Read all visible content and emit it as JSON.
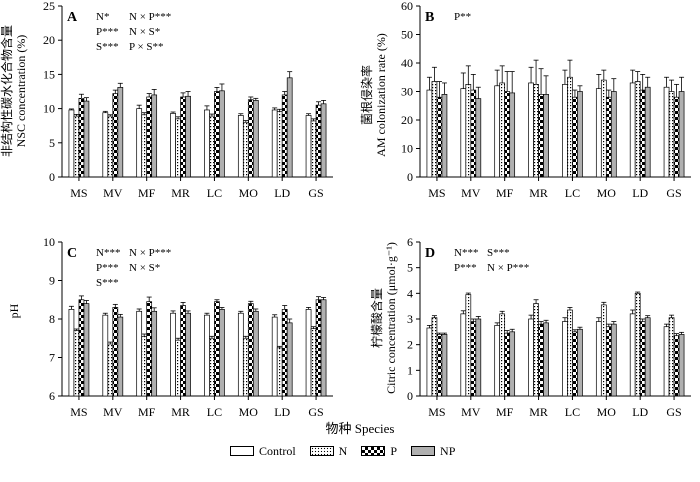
{
  "chart_data": [
    {
      "type": "bar",
      "panel_label": "A",
      "ylabel_cn": "非结构性碳水化合物含量",
      "ylabel_en": "NSC concentration (%)",
      "ylim": [
        0,
        25
      ],
      "yticks": [
        0,
        5,
        10,
        15,
        20,
        25
      ],
      "annotations": [
        [
          "N*",
          "N × P***"
        ],
        [
          "P***",
          "N × S*"
        ],
        [
          "S***",
          "P × S**"
        ]
      ],
      "categories": [
        "MS",
        "MV",
        "MF",
        "MR",
        "LC",
        "MO",
        "LD",
        "GS"
      ],
      "series": [
        {
          "name": "Control",
          "values": [
            9.8,
            9.4,
            10.0,
            9.3,
            9.8,
            9.0,
            9.8,
            9.0
          ],
          "errors": [
            0.15,
            0.2,
            0.5,
            0.2,
            0.6,
            0.25,
            0.3,
            0.25
          ]
        },
        {
          "name": "N",
          "values": [
            8.9,
            8.9,
            9.1,
            8.5,
            8.9,
            8.0,
            9.6,
            8.2
          ],
          "errors": [
            0.25,
            0.2,
            0.3,
            0.3,
            0.3,
            0.25,
            0.3,
            0.3
          ]
        },
        {
          "name": "P",
          "values": [
            11.5,
            12.2,
            11.7,
            11.7,
            12.5,
            11.3,
            12.0,
            10.5
          ],
          "errors": [
            0.6,
            0.5,
            0.5,
            0.6,
            0.6,
            0.4,
            0.5,
            0.5
          ]
        },
        {
          "name": "NP",
          "values": [
            11.1,
            13.1,
            12.0,
            11.8,
            12.6,
            11.2,
            14.5,
            10.7
          ],
          "errors": [
            0.5,
            0.6,
            0.8,
            0.7,
            1.0,
            0.3,
            0.9,
            0.5
          ]
        }
      ]
    },
    {
      "type": "bar",
      "panel_label": "B",
      "ylabel_cn": "菌根侵染率",
      "ylabel_en": "AM colonization rate (%)",
      "ylim": [
        0,
        60
      ],
      "yticks": [
        0,
        10,
        20,
        30,
        40,
        50,
        60
      ],
      "annotations": [
        [
          "P**",
          ""
        ]
      ],
      "categories": [
        "MS",
        "MV",
        "MF",
        "MR",
        "LC",
        "MO",
        "LD",
        "GS"
      ],
      "series": [
        {
          "name": "Control",
          "values": [
            30.5,
            31.0,
            32.0,
            33.0,
            32.5,
            31.0,
            33.0,
            31.5
          ],
          "errors": [
            4.5,
            5.5,
            5.5,
            5.5,
            5.0,
            5.0,
            4.5,
            3.5
          ]
        },
        {
          "name": "N",
          "values": [
            33.5,
            32.5,
            33.0,
            32.5,
            35.0,
            34.0,
            33.5,
            30.0
          ],
          "errors": [
            5.0,
            6.5,
            6.0,
            8.5,
            6.0,
            3.5,
            3.5,
            4.0
          ]
        },
        {
          "name": "P",
          "values": [
            28.0,
            30.5,
            30.0,
            29.0,
            28.0,
            28.0,
            30.5,
            28.0
          ],
          "errors": [
            5.5,
            5.5,
            7.0,
            9.0,
            2.5,
            2.5,
            5.5,
            4.5
          ]
        },
        {
          "name": "NP",
          "values": [
            29.0,
            27.5,
            29.5,
            29.0,
            30.0,
            30.0,
            31.5,
            30.0
          ],
          "errors": [
            4.0,
            4.0,
            7.5,
            6.5,
            2.0,
            4.5,
            3.5,
            5.0
          ]
        }
      ]
    },
    {
      "type": "bar",
      "panel_label": "C",
      "ylabel_cn": "",
      "ylabel_en": "pH",
      "ylim": [
        6,
        10
      ],
      "yticks": [
        6,
        7,
        8,
        9,
        10
      ],
      "annotations": [
        [
          "N***",
          "N × P***"
        ],
        [
          "P***",
          "N × S*"
        ],
        [
          "S***",
          ""
        ]
      ],
      "categories": [
        "MS",
        "MV",
        "MF",
        "MR",
        "LC",
        "MO",
        "LD",
        "GS"
      ],
      "series": [
        {
          "name": "Control",
          "values": [
            8.25,
            8.1,
            8.2,
            8.15,
            8.1,
            8.15,
            8.05,
            8.25
          ],
          "errors": [
            0.08,
            0.05,
            0.06,
            0.06,
            0.05,
            0.05,
            0.06,
            0.05
          ]
        },
        {
          "name": "N",
          "values": [
            7.7,
            7.35,
            7.55,
            7.45,
            7.5,
            7.5,
            7.25,
            7.75
          ],
          "errors": [
            0.04,
            0.05,
            0.06,
            0.05,
            0.05,
            0.05,
            0.04,
            0.05
          ]
        },
        {
          "name": "P",
          "values": [
            8.5,
            8.3,
            8.45,
            8.35,
            8.45,
            8.4,
            8.25,
            8.5
          ],
          "errors": [
            0.1,
            0.08,
            0.12,
            0.08,
            0.05,
            0.06,
            0.1,
            0.08
          ]
        },
        {
          "name": "NP",
          "values": [
            8.4,
            8.05,
            8.2,
            8.15,
            8.25,
            8.2,
            7.9,
            8.5
          ],
          "errors": [
            0.08,
            0.07,
            0.09,
            0.06,
            0.05,
            0.06,
            0.1,
            0.06
          ]
        }
      ]
    },
    {
      "type": "bar",
      "panel_label": "D",
      "ylabel_cn": "柠檬酸含量",
      "ylabel_en": "Citric concentration (μmol·g⁻¹)",
      "ylim": [
        0,
        6
      ],
      "yticks": [
        0,
        1,
        2,
        3,
        4,
        5,
        6
      ],
      "annotations": [
        [
          "N***",
          "S***"
        ],
        [
          "P***",
          "N × P***"
        ]
      ],
      "categories": [
        "MS",
        "MV",
        "MF",
        "MR",
        "LC",
        "MO",
        "LD",
        "GS"
      ],
      "series": [
        {
          "name": "Control",
          "values": [
            2.65,
            3.2,
            2.75,
            3.0,
            2.9,
            2.9,
            3.2,
            2.7
          ],
          "errors": [
            0.1,
            0.12,
            0.1,
            0.15,
            0.15,
            0.15,
            0.15,
            0.1
          ]
        },
        {
          "name": "N",
          "values": [
            3.05,
            3.95,
            3.2,
            3.6,
            3.35,
            3.55,
            4.0,
            3.05
          ],
          "errors": [
            0.08,
            0.06,
            0.1,
            0.15,
            0.1,
            0.1,
            0.05,
            0.1
          ]
        },
        {
          "name": "P",
          "values": [
            2.4,
            2.9,
            2.45,
            2.8,
            2.5,
            2.7,
            2.9,
            2.35
          ],
          "errors": [
            0.05,
            0.1,
            0.1,
            0.1,
            0.08,
            0.1,
            0.1,
            0.08
          ]
        },
        {
          "name": "NP",
          "values": [
            2.4,
            3.0,
            2.5,
            2.85,
            2.6,
            2.8,
            3.05,
            2.4
          ],
          "errors": [
            0.05,
            0.1,
            0.1,
            0.1,
            0.08,
            0.1,
            0.08,
            0.08
          ]
        }
      ]
    }
  ],
  "xlabel": "物种 Species",
  "legend": {
    "items": [
      "Control",
      "N",
      "P",
      "NP"
    ]
  },
  "colors": {
    "control": "#ffffff",
    "n_pattern": "dotted",
    "p_pattern": "checkered",
    "np": "#b0b0b0"
  }
}
